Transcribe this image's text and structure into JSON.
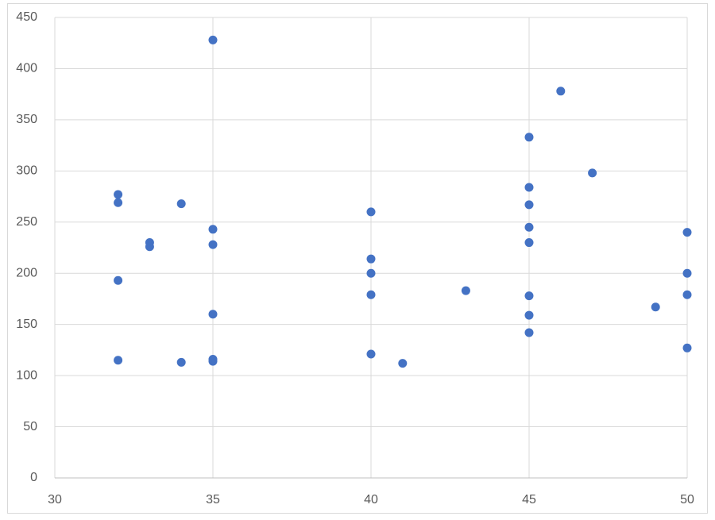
{
  "chart_data": {
    "type": "scatter",
    "x": [
      35,
      46,
      45,
      47,
      32,
      32,
      34,
      45,
      45,
      40,
      35,
      45,
      50,
      33,
      33,
      35,
      45,
      40,
      40,
      50,
      32,
      43,
      40,
      45,
      50,
      49,
      35,
      45,
      45,
      50,
      40,
      32,
      34,
      35,
      35,
      41
    ],
    "values": [
      428,
      378,
      333,
      298,
      277,
      269,
      268,
      284,
      267,
      260,
      243,
      245,
      240,
      230,
      226,
      228,
      230,
      214,
      200,
      200,
      193,
      183,
      179,
      178,
      179,
      167,
      160,
      159,
      142,
      127,
      121,
      115,
      113,
      116,
      114,
      112
    ],
    "color": "#4472c4",
    "xlim": [
      30,
      50
    ],
    "xticks": [
      30,
      35,
      40,
      45,
      50
    ],
    "ylim": [
      0,
      450
    ],
    "yticks": [
      0,
      50,
      100,
      150,
      200,
      250,
      300,
      350,
      400,
      450
    ],
    "grid": true
  }
}
